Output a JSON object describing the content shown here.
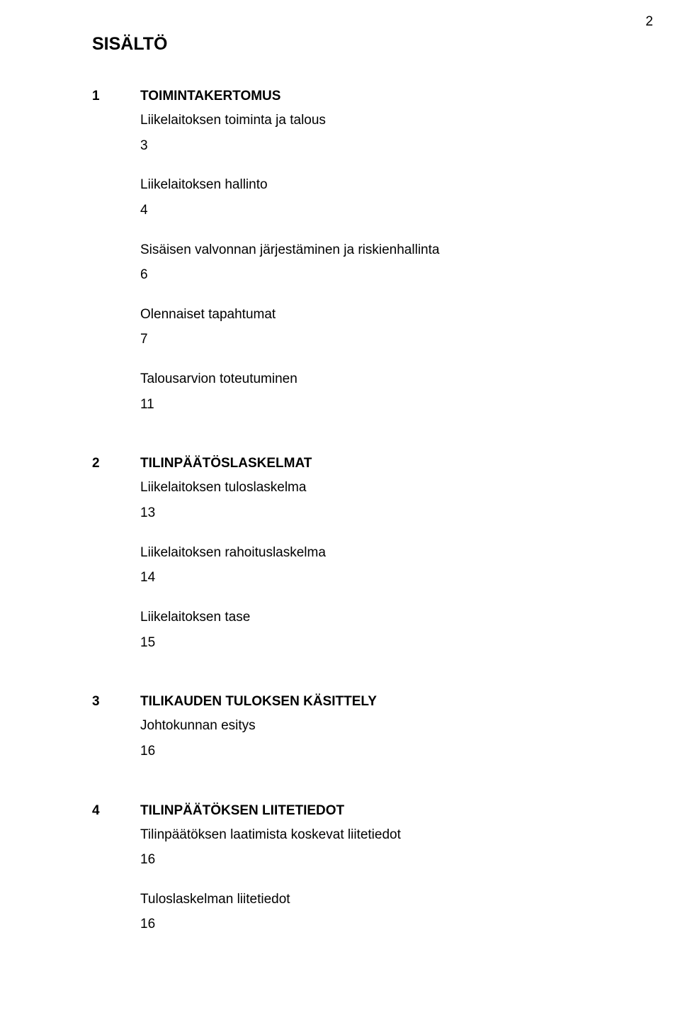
{
  "page_number": "2",
  "title": "SISÄLTÖ",
  "text_color": "#000000",
  "background_color": "#ffffff",
  "font_family": "Arial",
  "title_fontsize": 25,
  "body_fontsize": 19,
  "sections": [
    {
      "num": "1",
      "heading": "TOIMINTAKERTOMUS",
      "items": [
        {
          "label": "Liikelaitoksen toiminta ja talous",
          "page": "3"
        },
        {
          "label": "Liikelaitoksen hallinto",
          "page": "4"
        },
        {
          "label": "Sisäisen valvonnan järjestäminen ja riskienhallinta",
          "page": "6"
        },
        {
          "label": "Olennaiset tapahtumat",
          "page": "7"
        },
        {
          "label": "Talousarvion toteutuminen",
          "page": "11"
        }
      ]
    },
    {
      "num": "2",
      "heading": "TILINPÄÄTÖSLASKELMAT",
      "items": [
        {
          "label": "Liikelaitoksen tuloslaskelma",
          "page": "13"
        },
        {
          "label": "Liikelaitoksen rahoituslaskelma",
          "page": "14"
        },
        {
          "label": "Liikelaitoksen tase",
          "page": "15"
        }
      ]
    },
    {
      "num": "3",
      "heading": "TILIKAUDEN TULOKSEN KÄSITTELY",
      "items": [
        {
          "label": "Johtokunnan esitys",
          "page": "16"
        }
      ]
    },
    {
      "num": "4",
      "heading": "TILINPÄÄTÖKSEN LIITETIEDOT",
      "items": [
        {
          "label": "Tilinpäätöksen laatimista koskevat liitetiedot",
          "page": "16"
        },
        {
          "label": "Tuloslaskelman liitetiedot",
          "page": "16"
        }
      ]
    }
  ]
}
